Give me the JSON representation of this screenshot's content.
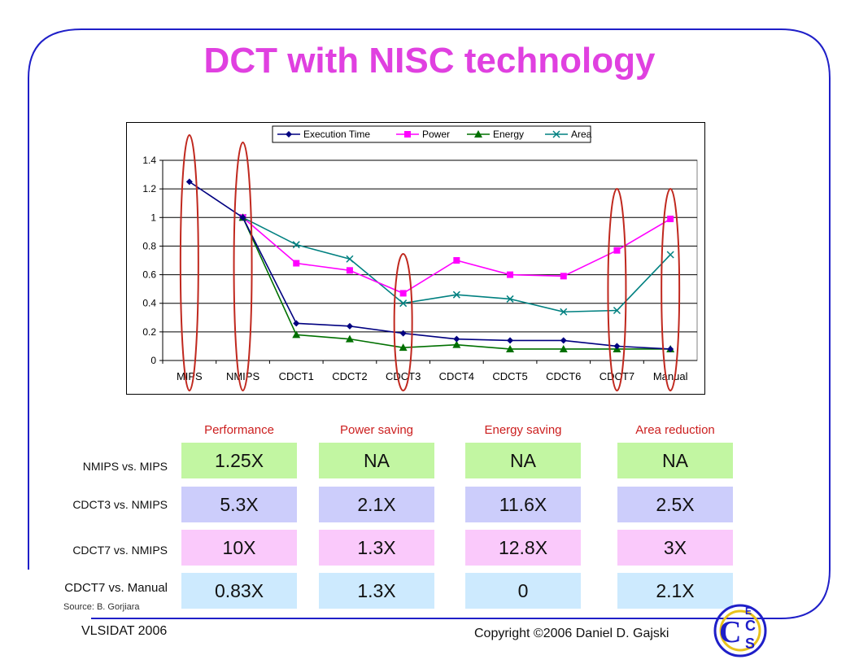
{
  "slide": {
    "title": "DCT with NISC technology",
    "source": "Source: B. Gorjiara",
    "venue": "VLSIDAT 2006",
    "copyright": "Copyright ©2006 Daniel D. Gajski",
    "logo_letters": [
      "C",
      "E",
      "C",
      "S"
    ]
  },
  "chart_data": {
    "type": "line",
    "categories": [
      "MIPS",
      "NMIPS",
      "CDCT1",
      "CDCT2",
      "CDCT3",
      "CDCT4",
      "CDCT5",
      "CDCT6",
      "CDCT7",
      "Manual"
    ],
    "series": [
      {
        "name": "Execution Time",
        "color": "#000080",
        "marker": "diamond",
        "values": [
          1.25,
          1.0,
          0.26,
          0.24,
          0.19,
          0.15,
          0.14,
          0.14,
          0.1,
          0.08
        ]
      },
      {
        "name": "Power",
        "color": "#ff00ff",
        "marker": "square",
        "values": [
          null,
          1.0,
          0.68,
          0.63,
          0.47,
          0.7,
          0.6,
          0.59,
          0.77,
          0.99
        ]
      },
      {
        "name": "Energy",
        "color": "#007000",
        "marker": "triangle",
        "values": [
          null,
          1.0,
          0.18,
          0.15,
          0.09,
          0.11,
          0.08,
          0.08,
          0.08,
          0.08
        ]
      },
      {
        "name": "Area",
        "color": "#008080",
        "marker": "x",
        "values": [
          null,
          1.0,
          0.81,
          0.71,
          0.4,
          0.46,
          0.43,
          0.34,
          0.35,
          0.74
        ]
      }
    ],
    "y_ticks": [
      "0",
      "0.2",
      "0.4",
      "0.6",
      "0.8",
      "1",
      "1.2",
      "1.4"
    ],
    "ylim": [
      0,
      1.4
    ],
    "grid": true,
    "legend_position": "top",
    "highlighted_categories": [
      "MIPS",
      "NMIPS",
      "CDCT3",
      "CDCT7",
      "Manual"
    ],
    "highlight_color": "#c0281e"
  },
  "table": {
    "columns": [
      "Performance",
      "Power saving",
      "Energy saving",
      "Area reduction"
    ],
    "rows": [
      {
        "label": "NMIPS vs. MIPS",
        "values": [
          "1.25X",
          "NA",
          "NA",
          "NA"
        ]
      },
      {
        "label": "CDCT3 vs. NMIPS",
        "values": [
          "5.3X",
          "2.1X",
          "11.6X",
          "2.5X"
        ]
      },
      {
        "label": "CDCT7 vs. NMIPS",
        "values": [
          "10X",
          "1.3X",
          "12.8X",
          "3X"
        ]
      },
      {
        "label": "CDCT7 vs. Manual",
        "values": [
          "0.83X",
          "1.3X",
          "0",
          "2.1X"
        ]
      }
    ]
  }
}
